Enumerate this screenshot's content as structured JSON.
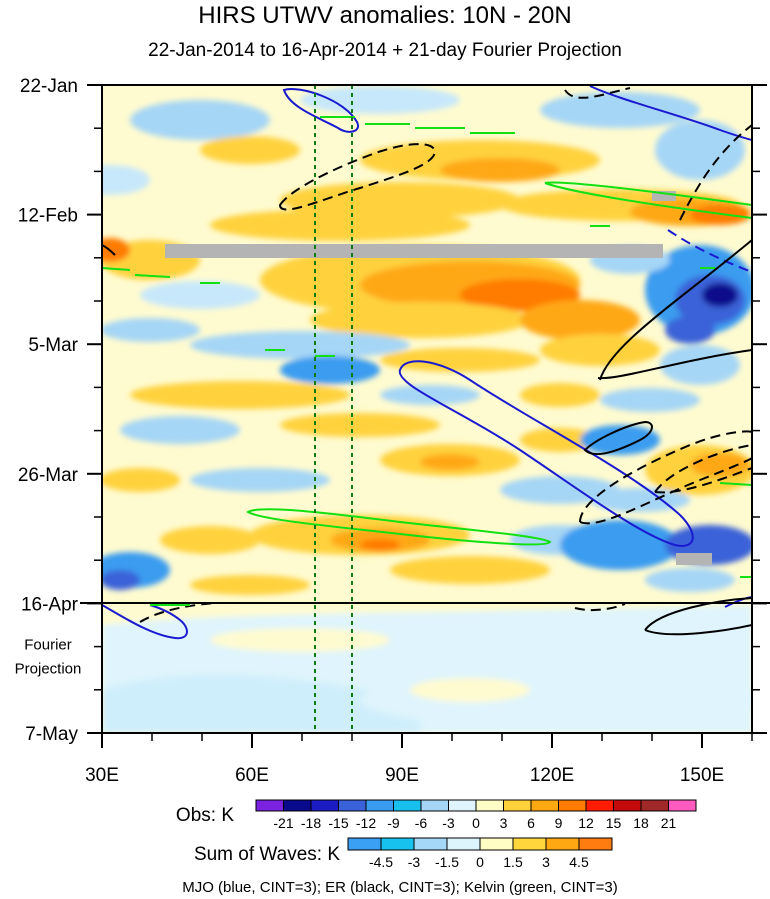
{
  "title": "HIRS UTWV anomalies: 10N - 20N",
  "subtitle": "22-Jan-2014 to 16-Apr-2014 + 21-day Fourier Projection",
  "chart_data": {
    "type": "heatmap",
    "title": "HIRS UTWV anomalies: 10N - 20N",
    "subtitle": "22-Jan-2014 to 16-Apr-2014 + 21-day Fourier Projection",
    "x_axis": {
      "ticks": [
        "30E",
        "60E",
        "90E",
        "120E",
        "150E"
      ],
      "tick_values": [
        30,
        60,
        90,
        120,
        150
      ],
      "range": [
        30,
        160
      ]
    },
    "y_axis": {
      "ticks": [
        "22-Jan",
        "12-Feb",
        "5-Mar",
        "26-Mar",
        "16-Apr",
        "7-May"
      ],
      "tick_day_offsets": [
        0,
        21,
        42,
        63,
        84,
        105
      ],
      "reversed": true
    },
    "observation_end": "16-Apr",
    "projection_label": [
      "Fourier",
      "Projection"
    ],
    "reference_lines_lon": [
      72.5,
      80
    ],
    "obs_colorbar": {
      "label": "Obs: K",
      "levels": [
        "-21",
        "-18",
        "-15",
        "-12",
        "-9",
        "-6",
        "-3",
        "0",
        "3",
        "6",
        "9",
        "12",
        "15",
        "18",
        "21"
      ],
      "colors": [
        "#7b22e0",
        "#0a0a8c",
        "#1c1cc4",
        "#3a62d8",
        "#3a9cf0",
        "#18c0ee",
        "#a6d6f6",
        "#dff4fc",
        "#fffdc6",
        "#ffd23c",
        "#ffa812",
        "#ff7c00",
        "#ff1c00",
        "#c40a0a",
        "#a02828",
        "#ff5ac0"
      ]
    },
    "wave_colorbar": {
      "label": "Sum of Waves: K",
      "levels": [
        "-4.5",
        "-3",
        "-1.5",
        "0",
        "1.5",
        "3",
        "4.5"
      ],
      "colors": [
        "#3aa0f4",
        "#18c2ee",
        "#a4d8f6",
        "#dcf4fc",
        "#fffcc4",
        "#ffd63c",
        "#ffa812",
        "#ff7c10"
      ]
    },
    "footnote": "MJO (blue, CINT=3); ER (black, CINT=3); Kelvin (green, CINT=3)",
    "series": [
      {
        "name": "MJO",
        "color": "#1a1ad0"
      },
      {
        "name": "ER",
        "color": "#000000"
      },
      {
        "name": "Kelvin",
        "color": "#12e012"
      }
    ]
  }
}
